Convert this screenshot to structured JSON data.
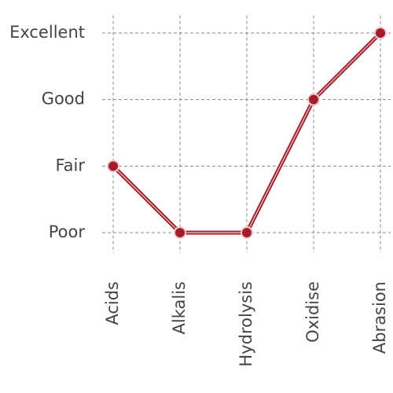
{
  "chart_data": {
    "type": "line",
    "categories": [
      "Acids",
      "Alkalis",
      "Hydrolysis",
      "Oxidise",
      "Abrasion"
    ],
    "series": [
      {
        "color": "#a51d2a",
        "values": [
          2,
          1,
          1,
          3,
          4
        ]
      }
    ],
    "ylim": [
      0.7,
      4.3
    ],
    "yticks": [
      {
        "value": 1,
        "label": "Poor"
      },
      {
        "value": 2,
        "label": "Fair"
      },
      {
        "value": 3,
        "label": "Good"
      },
      {
        "value": 4,
        "label": "Excellent"
      }
    ],
    "grid": true
  }
}
